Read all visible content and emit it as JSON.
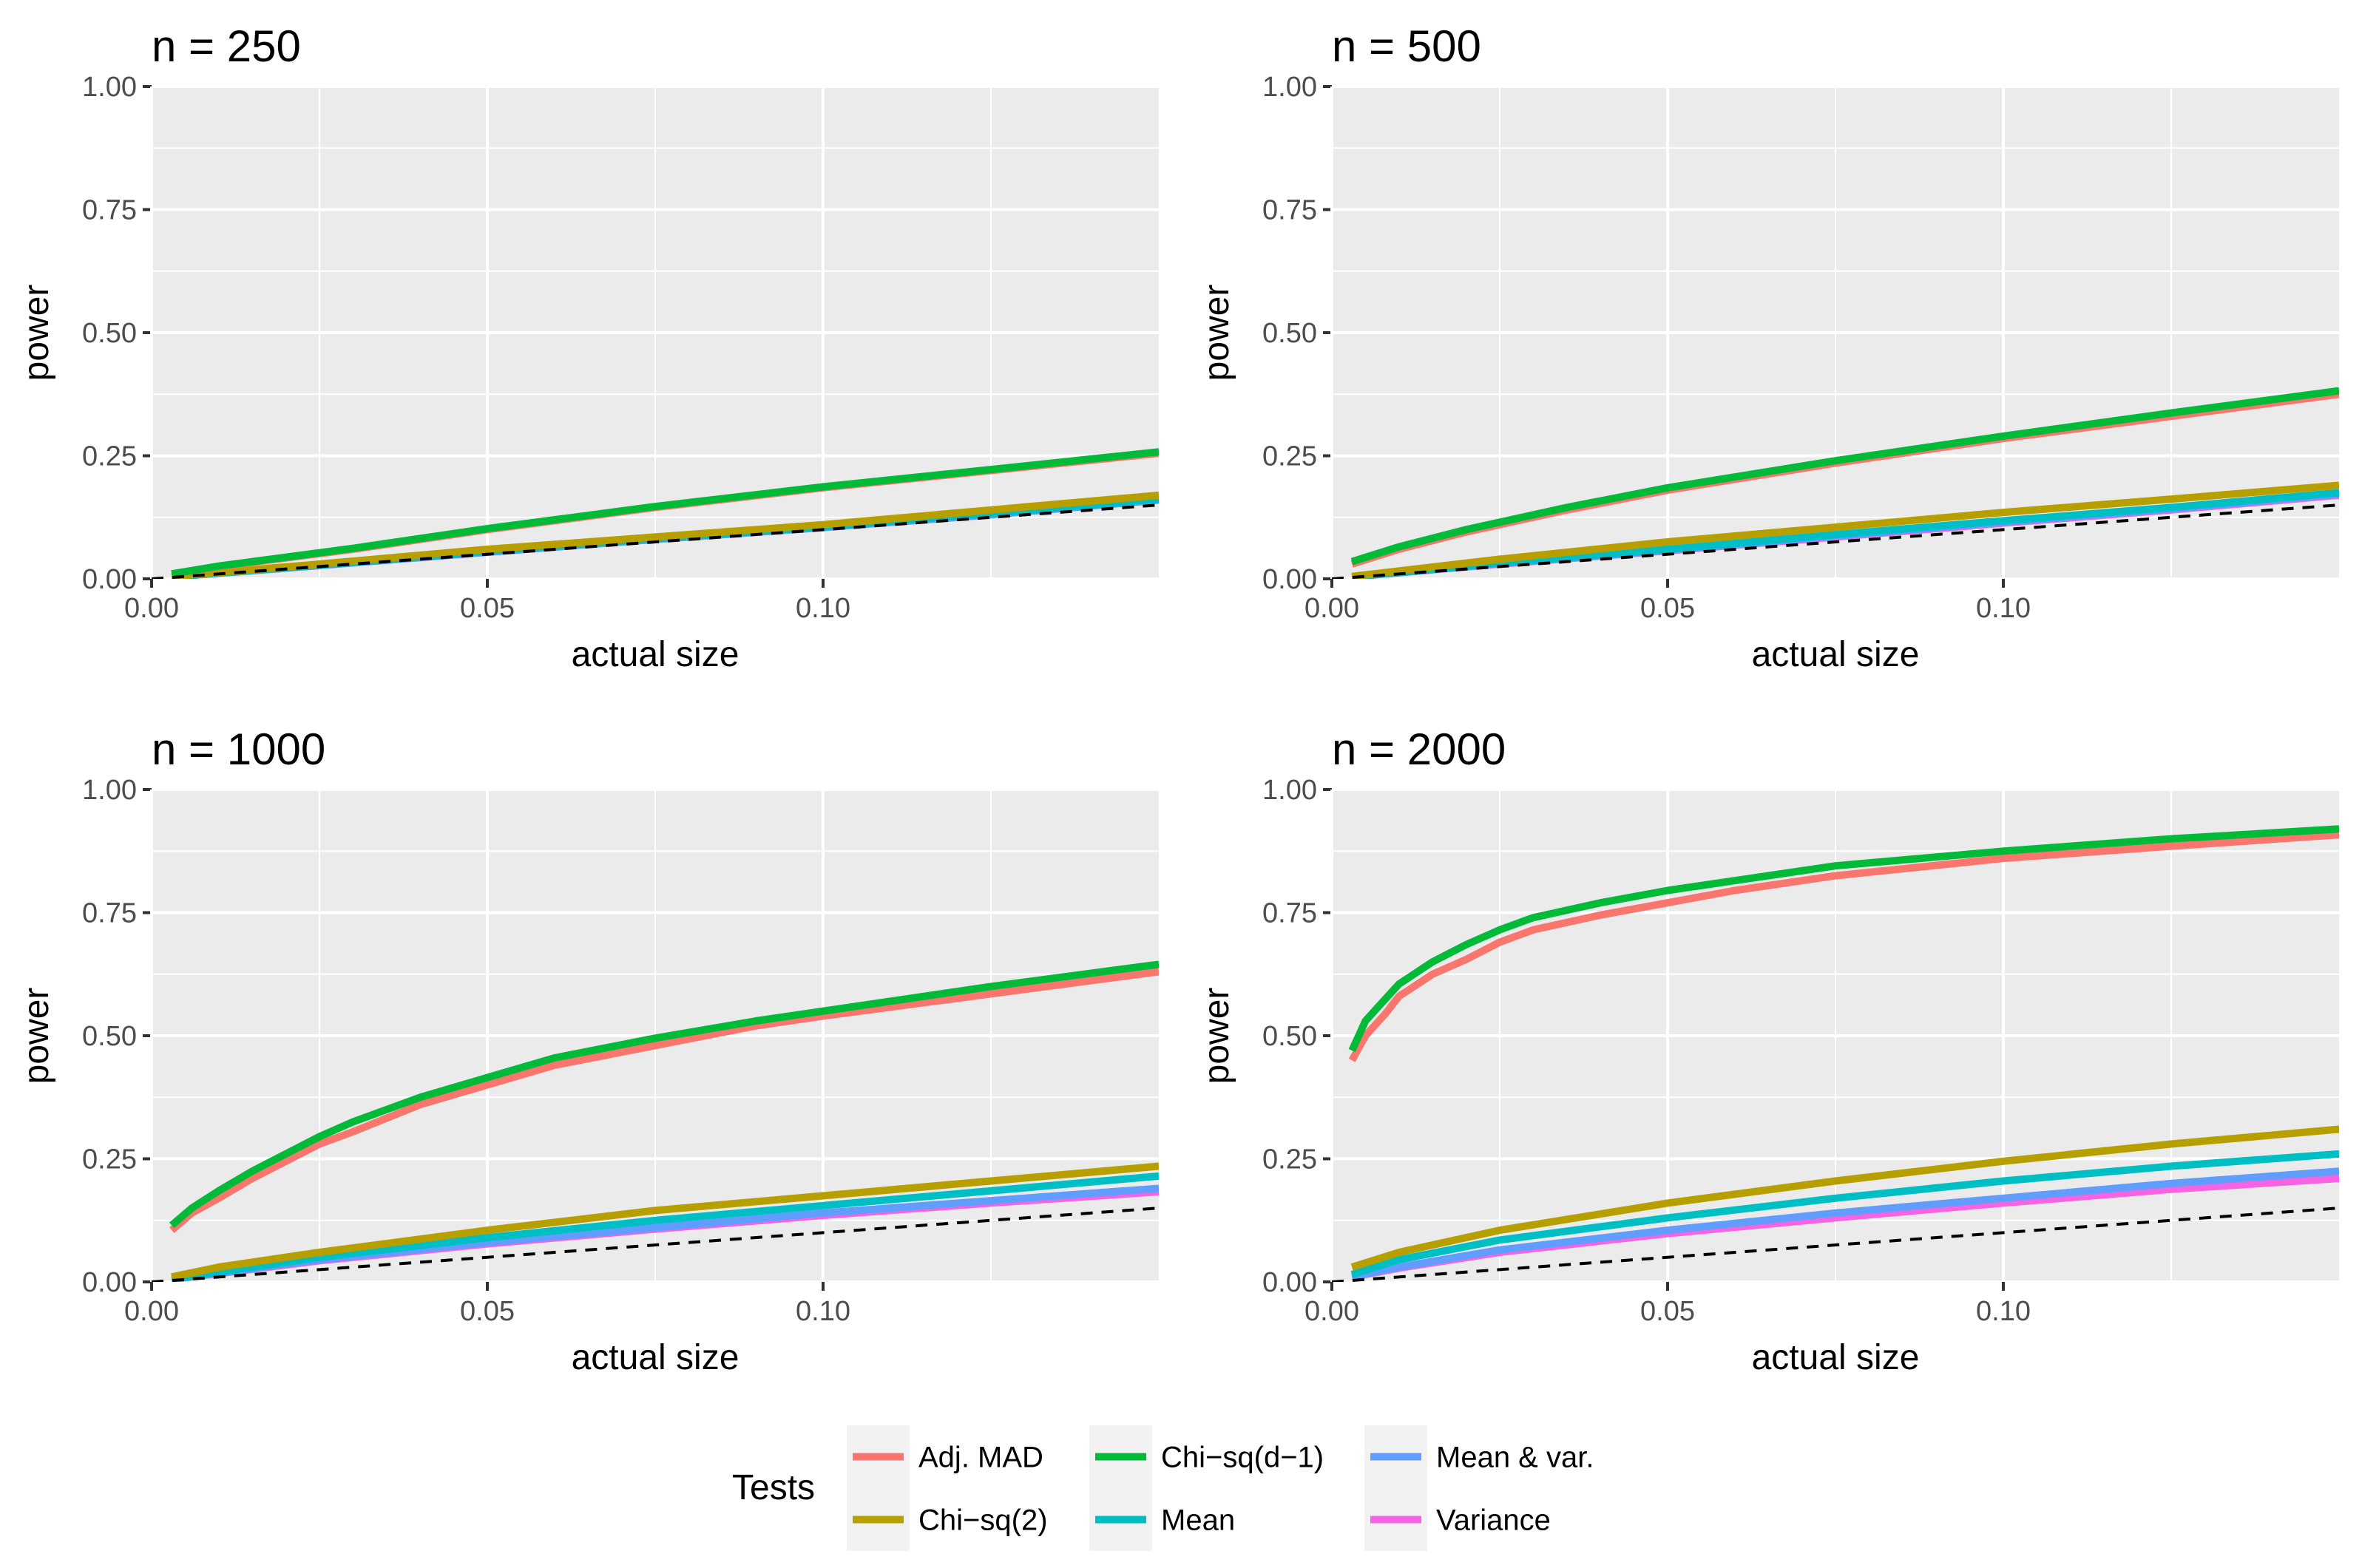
{
  "colors": {
    "panel_bg": "#ebebeb",
    "grid": "#ffffff",
    "tick": "#333333",
    "reference": "#000000",
    "legend_key_bg": "#f2f2f2"
  },
  "legend": {
    "title": "Tests",
    "items": [
      {
        "name": "Adj. MAD",
        "color": "#F8766D"
      },
      {
        "name": "Chi−sq(2)",
        "color": "#B79F00"
      },
      {
        "name": "Chi−sq(d−1)",
        "color": "#00BA38"
      },
      {
        "name": "Mean",
        "color": "#00BFC4"
      },
      {
        "name": "Mean & var.",
        "color": "#619CFF"
      },
      {
        "name": "Variance",
        "color": "#F564E3"
      }
    ]
  },
  "chart_data": [
    {
      "type": "line",
      "title": "n = 250",
      "xlabel": "actual size",
      "ylabel": "power",
      "xlim": [
        0.0,
        0.15
      ],
      "ylim": [
        0.0,
        1.0
      ],
      "x_ticks": [
        "0.00",
        "0.05",
        "0.10"
      ],
      "y_ticks": [
        "0.00",
        "0.25",
        "0.50",
        "0.75",
        "1.00"
      ],
      "reference_line": {
        "style": "dashed",
        "slope": 1,
        "intercept": 0
      },
      "series": [
        {
          "name": "Adj. MAD",
          "points": [
            [
              0.003,
              0.01
            ],
            [
              0.01,
              0.025
            ],
            [
              0.03,
              0.06
            ],
            [
              0.05,
              0.1
            ],
            [
              0.075,
              0.145
            ],
            [
              0.1,
              0.185
            ],
            [
              0.125,
              0.22
            ],
            [
              0.15,
              0.255
            ]
          ]
        },
        {
          "name": "Chi−sq(d−1)",
          "points": [
            [
              0.003,
              0.01
            ],
            [
              0.01,
              0.026
            ],
            [
              0.03,
              0.062
            ],
            [
              0.05,
              0.102
            ],
            [
              0.075,
              0.147
            ],
            [
              0.1,
              0.187
            ],
            [
              0.125,
              0.222
            ],
            [
              0.15,
              0.258
            ]
          ]
        },
        {
          "name": "Chi−sq(2)",
          "points": [
            [
              0.003,
              0.005
            ],
            [
              0.025,
              0.03
            ],
            [
              0.05,
              0.06
            ],
            [
              0.075,
              0.085
            ],
            [
              0.1,
              0.11
            ],
            [
              0.125,
              0.14
            ],
            [
              0.15,
              0.17
            ]
          ]
        },
        {
          "name": "Mean",
          "points": [
            [
              0.003,
              0.004
            ],
            [
              0.025,
              0.028
            ],
            [
              0.05,
              0.056
            ],
            [
              0.075,
              0.082
            ],
            [
              0.1,
              0.106
            ],
            [
              0.125,
              0.133
            ],
            [
              0.15,
              0.162
            ]
          ]
        },
        {
          "name": "Mean & var.",
          "points": [
            [
              0.003,
              0.004
            ],
            [
              0.025,
              0.027
            ],
            [
              0.05,
              0.054
            ],
            [
              0.075,
              0.08
            ],
            [
              0.1,
              0.104
            ],
            [
              0.125,
              0.13
            ],
            [
              0.15,
              0.16
            ]
          ]
        },
        {
          "name": "Variance",
          "points": [
            [
              0.003,
              0.004
            ],
            [
              0.025,
              0.027
            ],
            [
              0.05,
              0.054
            ],
            [
              0.075,
              0.08
            ],
            [
              0.1,
              0.105
            ],
            [
              0.125,
              0.132
            ],
            [
              0.15,
              0.16
            ]
          ]
        }
      ]
    },
    {
      "type": "line",
      "title": "n = 500",
      "xlabel": "actual size",
      "ylabel": "power",
      "xlim": [
        0.0,
        0.15
      ],
      "ylim": [
        0.0,
        1.0
      ],
      "x_ticks": [
        "0.00",
        "0.05",
        "0.10"
      ],
      "y_ticks": [
        "0.00",
        "0.25",
        "0.50",
        "0.75",
        "1.00"
      ],
      "reference_line": {
        "style": "dashed",
        "slope": 1,
        "intercept": 0
      },
      "series": [
        {
          "name": "Adj. MAD",
          "points": [
            [
              0.003,
              0.03
            ],
            [
              0.01,
              0.06
            ],
            [
              0.02,
              0.095
            ],
            [
              0.035,
              0.14
            ],
            [
              0.05,
              0.18
            ],
            [
              0.075,
              0.235
            ],
            [
              0.1,
              0.285
            ],
            [
              0.125,
              0.33
            ],
            [
              0.15,
              0.375
            ]
          ]
        },
        {
          "name": "Chi−sq(d−1)",
          "points": [
            [
              0.003,
              0.035
            ],
            [
              0.01,
              0.065
            ],
            [
              0.02,
              0.1
            ],
            [
              0.035,
              0.145
            ],
            [
              0.05,
              0.185
            ],
            [
              0.075,
              0.24
            ],
            [
              0.1,
              0.29
            ],
            [
              0.125,
              0.337
            ],
            [
              0.15,
              0.382
            ]
          ]
        },
        {
          "name": "Chi−sq(2)",
          "points": [
            [
              0.003,
              0.005
            ],
            [
              0.025,
              0.04
            ],
            [
              0.05,
              0.075
            ],
            [
              0.075,
              0.105
            ],
            [
              0.1,
              0.135
            ],
            [
              0.125,
              0.162
            ],
            [
              0.15,
              0.19
            ]
          ]
        },
        {
          "name": "Mean",
          "points": [
            [
              0.003,
              0.004
            ],
            [
              0.025,
              0.032
            ],
            [
              0.05,
              0.06
            ],
            [
              0.075,
              0.09
            ],
            [
              0.1,
              0.118
            ],
            [
              0.125,
              0.145
            ],
            [
              0.15,
              0.175
            ]
          ]
        },
        {
          "name": "Mean & var.",
          "points": [
            [
              0.003,
              0.004
            ],
            [
              0.025,
              0.031
            ],
            [
              0.05,
              0.058
            ],
            [
              0.075,
              0.087
            ],
            [
              0.1,
              0.115
            ],
            [
              0.125,
              0.142
            ],
            [
              0.15,
              0.172
            ]
          ]
        },
        {
          "name": "Variance",
          "points": [
            [
              0.003,
              0.004
            ],
            [
              0.025,
              0.03
            ],
            [
              0.05,
              0.057
            ],
            [
              0.075,
              0.085
            ],
            [
              0.1,
              0.113
            ],
            [
              0.125,
              0.14
            ],
            [
              0.15,
              0.17
            ]
          ]
        }
      ]
    },
    {
      "type": "line",
      "title": "n = 1000",
      "xlabel": "actual size",
      "ylabel": "power",
      "xlim": [
        0.0,
        0.15
      ],
      "ylim": [
        0.0,
        1.0
      ],
      "x_ticks": [
        "0.00",
        "0.05",
        "0.10"
      ],
      "y_ticks": [
        "0.00",
        "0.25",
        "0.50",
        "0.75",
        "1.00"
      ],
      "reference_line": {
        "style": "dashed",
        "slope": 1,
        "intercept": 0
      },
      "series": [
        {
          "name": "Adj. MAD",
          "points": [
            [
              0.003,
              0.105
            ],
            [
              0.006,
              0.14
            ],
            [
              0.01,
              0.17
            ],
            [
              0.015,
              0.21
            ],
            [
              0.02,
              0.245
            ],
            [
              0.025,
              0.28
            ],
            [
              0.03,
              0.305
            ],
            [
              0.04,
              0.36
            ],
            [
              0.05,
              0.4
            ],
            [
              0.06,
              0.44
            ],
            [
              0.075,
              0.48
            ],
            [
              0.09,
              0.52
            ],
            [
              0.1,
              0.54
            ],
            [
              0.125,
              0.585
            ],
            [
              0.15,
              0.63
            ]
          ]
        },
        {
          "name": "Chi−sq(d−1)",
          "points": [
            [
              0.003,
              0.115
            ],
            [
              0.006,
              0.15
            ],
            [
              0.01,
              0.185
            ],
            [
              0.015,
              0.225
            ],
            [
              0.02,
              0.26
            ],
            [
              0.025,
              0.295
            ],
            [
              0.03,
              0.325
            ],
            [
              0.04,
              0.375
            ],
            [
              0.05,
              0.415
            ],
            [
              0.06,
              0.455
            ],
            [
              0.075,
              0.495
            ],
            [
              0.09,
              0.53
            ],
            [
              0.1,
              0.55
            ],
            [
              0.125,
              0.6
            ],
            [
              0.15,
              0.645
            ]
          ]
        },
        {
          "name": "Chi−sq(2)",
          "points": [
            [
              0.003,
              0.01
            ],
            [
              0.01,
              0.03
            ],
            [
              0.025,
              0.06
            ],
            [
              0.05,
              0.105
            ],
            [
              0.075,
              0.145
            ],
            [
              0.1,
              0.175
            ],
            [
              0.125,
              0.205
            ],
            [
              0.15,
              0.235
            ]
          ]
        },
        {
          "name": "Mean",
          "points": [
            [
              0.003,
              0.005
            ],
            [
              0.01,
              0.02
            ],
            [
              0.025,
              0.05
            ],
            [
              0.05,
              0.09
            ],
            [
              0.075,
              0.125
            ],
            [
              0.1,
              0.155
            ],
            [
              0.125,
              0.185
            ],
            [
              0.15,
              0.215
            ]
          ]
        },
        {
          "name": "Mean & var.",
          "points": [
            [
              0.003,
              0.005
            ],
            [
              0.01,
              0.018
            ],
            [
              0.025,
              0.045
            ],
            [
              0.05,
              0.08
            ],
            [
              0.075,
              0.11
            ],
            [
              0.1,
              0.14
            ],
            [
              0.125,
              0.165
            ],
            [
              0.15,
              0.19
            ]
          ]
        },
        {
          "name": "Variance",
          "points": [
            [
              0.003,
              0.005
            ],
            [
              0.01,
              0.017
            ],
            [
              0.025,
              0.043
            ],
            [
              0.05,
              0.077
            ],
            [
              0.075,
              0.107
            ],
            [
              0.1,
              0.135
            ],
            [
              0.125,
              0.16
            ],
            [
              0.15,
              0.183
            ]
          ]
        }
      ]
    },
    {
      "type": "line",
      "title": "n = 2000",
      "xlabel": "actual size",
      "ylabel": "power",
      "xlim": [
        0.0,
        0.15
      ],
      "ylim": [
        0.0,
        1.0
      ],
      "x_ticks": [
        "0.00",
        "0.05",
        "0.10"
      ],
      "y_ticks": [
        "0.00",
        "0.25",
        "0.50",
        "0.75",
        "1.00"
      ],
      "reference_line": {
        "style": "dashed",
        "slope": 1,
        "intercept": 0
      },
      "series": [
        {
          "name": "Adj. MAD",
          "points": [
            [
              0.003,
              0.45
            ],
            [
              0.005,
              0.5
            ],
            [
              0.008,
              0.545
            ],
            [
              0.01,
              0.58
            ],
            [
              0.015,
              0.625
            ],
            [
              0.02,
              0.655
            ],
            [
              0.025,
              0.69
            ],
            [
              0.03,
              0.715
            ],
            [
              0.04,
              0.745
            ],
            [
              0.05,
              0.77
            ],
            [
              0.06,
              0.795
            ],
            [
              0.075,
              0.825
            ],
            [
              0.1,
              0.86
            ],
            [
              0.125,
              0.885
            ],
            [
              0.15,
              0.908
            ]
          ]
        },
        {
          "name": "Chi−sq(d−1)",
          "points": [
            [
              0.003,
              0.47
            ],
            [
              0.005,
              0.53
            ],
            [
              0.008,
              0.575
            ],
            [
              0.01,
              0.605
            ],
            [
              0.015,
              0.65
            ],
            [
              0.02,
              0.685
            ],
            [
              0.025,
              0.715
            ],
            [
              0.03,
              0.74
            ],
            [
              0.04,
              0.77
            ],
            [
              0.05,
              0.795
            ],
            [
              0.06,
              0.815
            ],
            [
              0.075,
              0.845
            ],
            [
              0.1,
              0.875
            ],
            [
              0.125,
              0.9
            ],
            [
              0.15,
              0.92
            ]
          ]
        },
        {
          "name": "Chi−sq(2)",
          "points": [
            [
              0.003,
              0.03
            ],
            [
              0.01,
              0.06
            ],
            [
              0.025,
              0.105
            ],
            [
              0.05,
              0.16
            ],
            [
              0.075,
              0.205
            ],
            [
              0.1,
              0.245
            ],
            [
              0.125,
              0.28
            ],
            [
              0.15,
              0.31
            ]
          ]
        },
        {
          "name": "Mean",
          "points": [
            [
              0.003,
              0.015
            ],
            [
              0.01,
              0.045
            ],
            [
              0.025,
              0.085
            ],
            [
              0.05,
              0.13
            ],
            [
              0.075,
              0.17
            ],
            [
              0.1,
              0.205
            ],
            [
              0.125,
              0.235
            ],
            [
              0.15,
              0.26
            ]
          ]
        },
        {
          "name": "Mean & var.",
          "points": [
            [
              0.003,
              0.01
            ],
            [
              0.01,
              0.03
            ],
            [
              0.025,
              0.065
            ],
            [
              0.05,
              0.105
            ],
            [
              0.075,
              0.14
            ],
            [
              0.1,
              0.17
            ],
            [
              0.125,
              0.2
            ],
            [
              0.15,
              0.225
            ]
          ]
        },
        {
          "name": "Variance",
          "points": [
            [
              0.003,
              0.01
            ],
            [
              0.01,
              0.028
            ],
            [
              0.025,
              0.06
            ],
            [
              0.05,
              0.098
            ],
            [
              0.075,
              0.13
            ],
            [
              0.1,
              0.16
            ],
            [
              0.125,
              0.188
            ],
            [
              0.15,
              0.21
            ]
          ]
        }
      ]
    }
  ]
}
